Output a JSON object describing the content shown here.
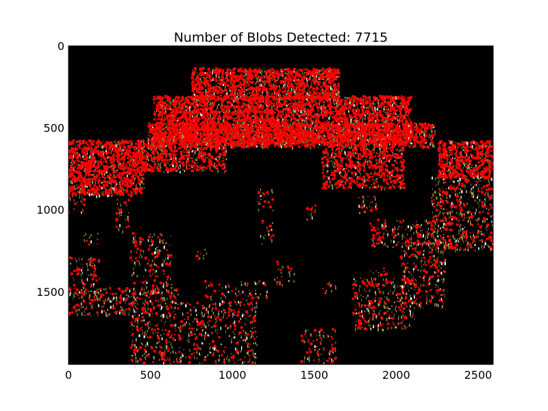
{
  "chart_data": {
    "type": "image",
    "title": "Number of Blobs Detected: 7715",
    "xlabel": "",
    "ylabel": "",
    "xlim": [
      0,
      2592
    ],
    "ylim": [
      1944,
      0
    ],
    "x_ticks": [
      0,
      500,
      1000,
      1500,
      2000,
      2500
    ],
    "y_ticks": [
      0,
      500,
      1000,
      1500
    ],
    "x_tick_labels": [
      "0",
      "500",
      "1000",
      "1500",
      "2000",
      "2500"
    ],
    "y_tick_labels": [
      "0",
      "500",
      "1000",
      "1500"
    ],
    "background_color": "#000000",
    "blob_color": "#ff0000",
    "texture_colors": [
      "#9a8a3a",
      "#5a6a2a",
      "#c8b060",
      "#ffffff"
    ],
    "blob_count": 7715,
    "grid": false
  }
}
